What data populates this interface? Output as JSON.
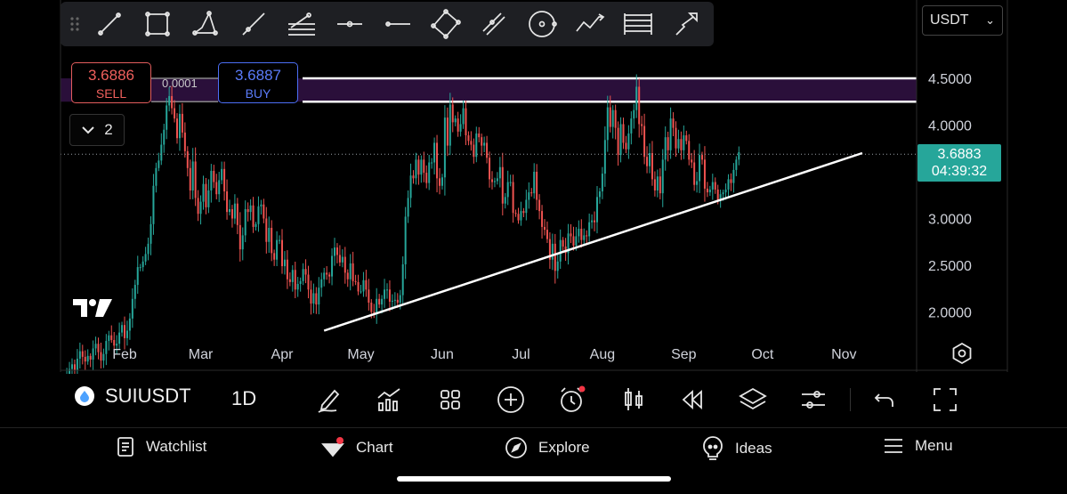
{
  "toolbar": {
    "tools": [
      "trend-line-icon",
      "rectangle-icon",
      "polygon-icon",
      "ray-icon",
      "fib-retracement-icon",
      "horizontal-ray-icon",
      "horizontal-line-icon",
      "rotated-rectangle-icon",
      "parallel-channel-icon",
      "circle-icon",
      "path-icon",
      "gann-box-icon",
      "arrow-icon"
    ]
  },
  "currency": {
    "selected": "USDT",
    "caret": "⌄"
  },
  "trade": {
    "sell_price": "3.6886",
    "sell_label": "SELL",
    "buy_price": "3.6887",
    "buy_label": "BUY",
    "spread": "0.0001"
  },
  "indicators": {
    "collapse_count": "2"
  },
  "price_axis": {
    "labels": [
      "4.5000",
      "4.0000",
      "3.0000",
      "2.5000",
      "2.0000"
    ],
    "current_price": "3.6883",
    "countdown": "04:39:32"
  },
  "time_axis": {
    "labels": [
      "Feb",
      "Mar",
      "Apr",
      "May",
      "Jun",
      "Jul",
      "Aug",
      "Sep",
      "Oct",
      "Nov"
    ]
  },
  "chart_data": {
    "type": "candlestick",
    "ylim": [
      1.75,
      4.75
    ],
    "current_price": 3.6883,
    "zone": [
      4.25,
      4.5
    ],
    "trendline": {
      "start": [
        "Apr 17",
        1.8
      ],
      "end": [
        "Nov 8",
        3.7
      ]
    },
    "up_color": "#26a69a",
    "down_color": "#ef5350",
    "candles": [
      1.3,
      1.32,
      1.39,
      1.44,
      1.38,
      1.5,
      1.58,
      1.52,
      1.47,
      1.53,
      1.49,
      1.61,
      1.66,
      1.57,
      1.48,
      1.55,
      1.69,
      1.75,
      1.7,
      1.64,
      1.66,
      1.78,
      1.86,
      1.72,
      1.8,
      1.93,
      2.14,
      2.29,
      2.48,
      2.48,
      2.54,
      2.62,
      2.73,
      2.94,
      3.35,
      3.54,
      3.62,
      3.79,
      3.95,
      4.21,
      4.31,
      4.18,
      4.07,
      3.86,
      4.12,
      3.92,
      3.72,
      3.54,
      3.3,
      3.61,
      3.22,
      3.05,
      3.18,
      3.37,
      3.12,
      3.3,
      3.51,
      3.39,
      3.26,
      3.41,
      3.53,
      3.29,
      3.07,
      3.1,
      3.0,
      3.16,
      2.93,
      2.67,
      2.82,
      3.1,
      3.07,
      3.14,
      2.91,
      2.94,
      3.13,
      3.15,
      3.0,
      2.75,
      2.9,
      2.63,
      2.56,
      2.77,
      2.77,
      2.49,
      2.56,
      2.35,
      2.32,
      2.45,
      2.24,
      2.3,
      2.33,
      2.46,
      2.4,
      2.24,
      2.09,
      2.2,
      2.08,
      2.26,
      2.35,
      2.42,
      2.4,
      2.38,
      2.6,
      2.69,
      2.61,
      2.53,
      2.59,
      2.42,
      2.35,
      2.52,
      2.33,
      2.32,
      2.22,
      2.22,
      2.34,
      2.24,
      2.1,
      2.0,
      1.99,
      2.14,
      2.08,
      2.14,
      2.24,
      2.24,
      2.11,
      2.12,
      2.13,
      2.1,
      2.18,
      2.51,
      3.02,
      3.22,
      3.46,
      3.43,
      3.63,
      3.47,
      3.63,
      3.49,
      3.38,
      3.6,
      3.6,
      3.81,
      3.43,
      3.35,
      3.44,
      4.08,
      3.78,
      4.22,
      4.03,
      4.07,
      3.93,
      4.01,
      4.18,
      3.89,
      3.83,
      3.79,
      3.66,
      3.91,
      3.87,
      3.78,
      3.81,
      3.65,
      3.42,
      3.39,
      3.4,
      3.43,
      3.55,
      3.16,
      3.23,
      3.39,
      3.39,
      3.06,
      3.05,
      2.98,
      3.08,
      3.06,
      3.2,
      3.28,
      3.27,
      3.5,
      3.2,
      3.08,
      2.91,
      2.88,
      2.78,
      2.56,
      2.73,
      2.44,
      2.54,
      2.77,
      2.7,
      2.63,
      2.84,
      2.81,
      2.71,
      2.81,
      2.89,
      2.77,
      2.82,
      2.81,
      2.96,
      2.98,
      2.96,
      3.23,
      3.29,
      3.48,
      3.84,
      4.19,
      3.98,
      4.16,
      3.97,
      3.68,
      4.01,
      3.81,
      3.74,
      3.91,
      4.07,
      4.16,
      4.41,
      4.01,
      3.99,
      3.66,
      3.56,
      3.7,
      3.42,
      3.3,
      3.45,
      3.27,
      3.63,
      3.87,
      3.73,
      4.07,
      3.97,
      3.75,
      3.85,
      3.73,
      3.89,
      3.83,
      3.63,
      3.6,
      3.36,
      3.4,
      3.68,
      3.63,
      3.32,
      3.28,
      3.31,
      3.39,
      3.31,
      3.2,
      3.26,
      3.28,
      3.31,
      3.42,
      3.38,
      3.52,
      3.63,
      3.71
    ],
    "x_range": [
      "Jan 9",
      "Sep 11"
    ]
  },
  "bottom_toolbar": {
    "symbol": "SUIUSDT",
    "interval": "1D",
    "icons": [
      "draw-icon",
      "indicators-icon",
      "layout-icon",
      "add-icon",
      "alert-icon",
      "candles-icon",
      "replay-icon",
      "layers-icon",
      "settings-sliders-icon",
      "undo-icon",
      "fullscreen-icon"
    ]
  },
  "tabs": [
    {
      "label": "Watchlist",
      "icon": "watchlist-icon"
    },
    {
      "label": "Chart",
      "icon": "chart-icon"
    },
    {
      "label": "Explore",
      "icon": "explore-icon"
    },
    {
      "label": "Ideas",
      "icon": "ideas-icon"
    },
    {
      "label": "Menu",
      "icon": "menu-icon"
    }
  ]
}
